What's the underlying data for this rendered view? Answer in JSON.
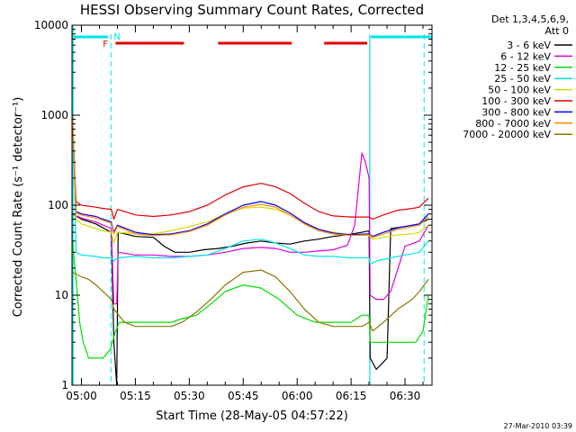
{
  "chart_data": {
    "type": "line",
    "title": "HESSI Observing Summary Count Rates, Corrected",
    "xlabel": "Start Time (28-May-05 04:57:22)",
    "ylabel": "Corrected Count Rate (s⁻¹ detector⁻¹)",
    "footer": "27-Mar-2010 03:39",
    "legend_title": [
      "Det 1,3,4,5,6,9,",
      "Att 0"
    ],
    "legend_position": "right",
    "y_scale": "log",
    "ylim": [
      1,
      10000
    ],
    "xlim_minutes": [
      297.37,
      397.5
    ],
    "x_ticks": [
      {
        "label": "05:00",
        "minutes": 300
      },
      {
        "label": "05:15",
        "minutes": 315
      },
      {
        "label": "05:30",
        "minutes": 330
      },
      {
        "label": "05:45",
        "minutes": 345
      },
      {
        "label": "06:00",
        "minutes": 360
      },
      {
        "label": "06:15",
        "minutes": 375
      },
      {
        "label": "06:30",
        "minutes": 390
      }
    ],
    "y_ticks": [
      {
        "label": "1",
        "value": 1
      },
      {
        "label": "10",
        "value": 10
      },
      {
        "label": "100",
        "value": 100
      },
      {
        "label": "1000",
        "value": 1000
      },
      {
        "label": "10000",
        "value": 10000
      }
    ],
    "markers": {
      "N_label": "N",
      "F_label": "F",
      "night_color": "#00e5e5",
      "flare_color": "#e00000",
      "night_segments": [
        [
          297.37,
          307.3
        ],
        [
          380.5,
          397.5
        ]
      ],
      "night_boundaries": [
        308.2,
        380.2,
        395.3
      ],
      "flare_segments": [
        [
          309.5,
          328.5
        ],
        [
          338.0,
          358.5
        ],
        [
          367.5,
          379.5
        ]
      ]
    },
    "series": [
      {
        "name": "3 - 6 keV",
        "color": "#000000",
        "points": [
          [
            297.5,
            80
          ],
          [
            300,
            70
          ],
          [
            304,
            62
          ],
          [
            306,
            56
          ],
          [
            308.3,
            50
          ],
          [
            309,
            3
          ],
          [
            309.8,
            1
          ],
          [
            310.2,
            50
          ],
          [
            315,
            45
          ],
          [
            320,
            44
          ],
          [
            323,
            35
          ],
          [
            326,
            30
          ],
          [
            330,
            30
          ],
          [
            334,
            32
          ],
          [
            338,
            33
          ],
          [
            342,
            35
          ],
          [
            346,
            38
          ],
          [
            350,
            40
          ],
          [
            354,
            38
          ],
          [
            358,
            37
          ],
          [
            362,
            40
          ],
          [
            366,
            42
          ],
          [
            370,
            45
          ],
          [
            374,
            47
          ],
          [
            378,
            50
          ],
          [
            380,
            52
          ],
          [
            380.3,
            2
          ],
          [
            382,
            1.5
          ],
          [
            385,
            2
          ],
          [
            386,
            55
          ],
          [
            390,
            58
          ],
          [
            394,
            62
          ],
          [
            396.5,
            70
          ]
        ]
      },
      {
        "name": "6 - 12 keV",
        "color": "#e000e0",
        "points": [
          [
            297.5,
            80
          ],
          [
            300,
            72
          ],
          [
            304,
            65
          ],
          [
            306,
            60
          ],
          [
            308.3,
            55
          ],
          [
            309,
            8
          ],
          [
            309.8,
            8
          ],
          [
            310.2,
            30
          ],
          [
            315,
            28
          ],
          [
            320,
            28
          ],
          [
            325,
            27
          ],
          [
            330,
            27
          ],
          [
            335,
            28
          ],
          [
            340,
            30
          ],
          [
            345,
            33
          ],
          [
            350,
            34
          ],
          [
            354,
            33
          ],
          [
            358,
            30
          ],
          [
            362,
            30
          ],
          [
            366,
            31
          ],
          [
            370,
            32
          ],
          [
            374,
            36
          ],
          [
            376,
            60
          ],
          [
            377,
            150
          ],
          [
            378,
            380
          ],
          [
            379,
            300
          ],
          [
            380,
            200
          ],
          [
            380.3,
            10
          ],
          [
            382,
            9
          ],
          [
            384,
            9
          ],
          [
            386,
            11
          ],
          [
            390,
            35
          ],
          [
            394,
            40
          ],
          [
            396.5,
            60
          ]
        ]
      },
      {
        "name": "12 - 25 keV",
        "color": "#00dd00",
        "points": [
          [
            297.5,
            40
          ],
          [
            298.5,
            15
          ],
          [
            299.5,
            5
          ],
          [
            300.5,
            3
          ],
          [
            302,
            2
          ],
          [
            304,
            2
          ],
          [
            306,
            2
          ],
          [
            308,
            2.5
          ],
          [
            309.5,
            4
          ],
          [
            310.5,
            5
          ],
          [
            315,
            5
          ],
          [
            320,
            5
          ],
          [
            325,
            5
          ],
          [
            328,
            5.5
          ],
          [
            332,
            6
          ],
          [
            336,
            8
          ],
          [
            340,
            11
          ],
          [
            345,
            13
          ],
          [
            350,
            12
          ],
          [
            355,
            9
          ],
          [
            360,
            6
          ],
          [
            365,
            5
          ],
          [
            370,
            5
          ],
          [
            375,
            5
          ],
          [
            378,
            6
          ],
          [
            380,
            6
          ],
          [
            380.3,
            3
          ],
          [
            384,
            3
          ],
          [
            388,
            3
          ],
          [
            390,
            3
          ],
          [
            393,
            3
          ],
          [
            395,
            4
          ],
          [
            396.5,
            10
          ]
        ]
      },
      {
        "name": "25 - 50 keV",
        "color": "#00e5e5",
        "points": [
          [
            297.5,
            1000
          ],
          [
            298,
            300
          ],
          [
            298.5,
            30
          ],
          [
            300,
            28
          ],
          [
            304,
            27
          ],
          [
            306,
            26
          ],
          [
            308.3,
            26
          ],
          [
            309,
            24
          ],
          [
            310,
            26
          ],
          [
            315,
            27
          ],
          [
            320,
            26
          ],
          [
            325,
            26
          ],
          [
            330,
            27
          ],
          [
            335,
            28
          ],
          [
            340,
            33
          ],
          [
            345,
            40
          ],
          [
            350,
            42
          ],
          [
            354,
            38
          ],
          [
            358,
            33
          ],
          [
            362,
            28
          ],
          [
            366,
            27
          ],
          [
            370,
            27
          ],
          [
            375,
            26
          ],
          [
            380,
            26
          ],
          [
            380.3,
            22
          ],
          [
            382,
            24
          ],
          [
            386,
            26
          ],
          [
            390,
            28
          ],
          [
            394,
            30
          ],
          [
            396.5,
            40
          ]
        ]
      },
      {
        "name": "50 - 100 keV",
        "color": "#d8d800",
        "points": [
          [
            297.5,
            1000
          ],
          [
            298,
            300
          ],
          [
            298.5,
            70
          ],
          [
            300,
            62
          ],
          [
            304,
            55
          ],
          [
            306,
            52
          ],
          [
            308.3,
            50
          ],
          [
            309,
            38
          ],
          [
            310,
            50
          ],
          [
            315,
            48
          ],
          [
            320,
            48
          ],
          [
            325,
            52
          ],
          [
            330,
            58
          ],
          [
            335,
            65
          ],
          [
            340,
            80
          ],
          [
            345,
            93
          ],
          [
            350,
            95
          ],
          [
            354,
            90
          ],
          [
            358,
            78
          ],
          [
            362,
            63
          ],
          [
            366,
            54
          ],
          [
            370,
            50
          ],
          [
            375,
            47
          ],
          [
            380,
            46
          ],
          [
            381,
            42
          ],
          [
            384,
            44
          ],
          [
            388,
            47
          ],
          [
            392,
            48
          ],
          [
            394,
            50
          ],
          [
            396.5,
            60
          ]
        ]
      },
      {
        "name": "100 - 300 keV",
        "color": "#e00000",
        "points": [
          [
            297.5,
            1000
          ],
          [
            298,
            300
          ],
          [
            298.5,
            110
          ],
          [
            300,
            100
          ],
          [
            304,
            95
          ],
          [
            306,
            92
          ],
          [
            308.3,
            90
          ],
          [
            309,
            70
          ],
          [
            310,
            90
          ],
          [
            315,
            78
          ],
          [
            320,
            75
          ],
          [
            325,
            78
          ],
          [
            330,
            85
          ],
          [
            335,
            100
          ],
          [
            340,
            130
          ],
          [
            345,
            160
          ],
          [
            350,
            175
          ],
          [
            354,
            160
          ],
          [
            358,
            135
          ],
          [
            362,
            105
          ],
          [
            366,
            85
          ],
          [
            370,
            76
          ],
          [
            375,
            74
          ],
          [
            380,
            74
          ],
          [
            381,
            70
          ],
          [
            384,
            78
          ],
          [
            388,
            88
          ],
          [
            392,
            92
          ],
          [
            394,
            95
          ],
          [
            396.5,
            120
          ]
        ]
      },
      {
        "name": "300 - 800 keV",
        "color": "#0000ff",
        "points": [
          [
            297.5,
            1000
          ],
          [
            298,
            300
          ],
          [
            298.5,
            85
          ],
          [
            300,
            80
          ],
          [
            304,
            75
          ],
          [
            306,
            70
          ],
          [
            308.3,
            65
          ],
          [
            309,
            50
          ],
          [
            310,
            60
          ],
          [
            315,
            50
          ],
          [
            320,
            47
          ],
          [
            325,
            48
          ],
          [
            330,
            52
          ],
          [
            335,
            62
          ],
          [
            340,
            80
          ],
          [
            345,
            100
          ],
          [
            350,
            110
          ],
          [
            354,
            100
          ],
          [
            358,
            82
          ],
          [
            362,
            64
          ],
          [
            366,
            54
          ],
          [
            370,
            49
          ],
          [
            375,
            47
          ],
          [
            380,
            48
          ],
          [
            381,
            45
          ],
          [
            384,
            50
          ],
          [
            388,
            56
          ],
          [
            392,
            60
          ],
          [
            394,
            62
          ],
          [
            396.5,
            80
          ]
        ]
      },
      {
        "name": "800 - 7000 keV",
        "color": "#ff8c00",
        "points": [
          [
            297.5,
            1000
          ],
          [
            298,
            300
          ],
          [
            298.5,
            82
          ],
          [
            300,
            78
          ],
          [
            304,
            72
          ],
          [
            306,
            68
          ],
          [
            308.3,
            63
          ],
          [
            309,
            48
          ],
          [
            310,
            58
          ],
          [
            315,
            48
          ],
          [
            320,
            46
          ],
          [
            325,
            47
          ],
          [
            330,
            51
          ],
          [
            335,
            60
          ],
          [
            340,
            78
          ],
          [
            345,
            95
          ],
          [
            350,
            102
          ],
          [
            354,
            95
          ],
          [
            358,
            78
          ],
          [
            362,
            62
          ],
          [
            366,
            52
          ],
          [
            370,
            48
          ],
          [
            375,
            46
          ],
          [
            380,
            47
          ],
          [
            381,
            44
          ],
          [
            384,
            48
          ],
          [
            388,
            54
          ],
          [
            392,
            58
          ],
          [
            394,
            60
          ],
          [
            396.5,
            75
          ]
        ]
      },
      {
        "name": "7000 - 20000 keV",
        "color": "#8b7500",
        "points": [
          [
            297.5,
            18
          ],
          [
            300,
            16
          ],
          [
            302,
            15
          ],
          [
            304,
            13
          ],
          [
            306,
            11
          ],
          [
            308.3,
            9
          ],
          [
            309,
            7
          ],
          [
            312,
            5
          ],
          [
            315,
            4.5
          ],
          [
            320,
            4.5
          ],
          [
            325,
            4.5
          ],
          [
            328,
            5
          ],
          [
            332,
            6.5
          ],
          [
            336,
            9
          ],
          [
            340,
            13
          ],
          [
            345,
            18
          ],
          [
            350,
            19
          ],
          [
            354,
            16
          ],
          [
            358,
            11
          ],
          [
            362,
            7
          ],
          [
            366,
            5
          ],
          [
            370,
            4.5
          ],
          [
            375,
            4.5
          ],
          [
            378,
            4.5
          ],
          [
            380,
            5
          ],
          [
            381,
            4
          ],
          [
            384,
            5
          ],
          [
            388,
            7
          ],
          [
            392,
            9
          ],
          [
            394,
            11
          ],
          [
            396.5,
            15
          ]
        ]
      }
    ]
  }
}
